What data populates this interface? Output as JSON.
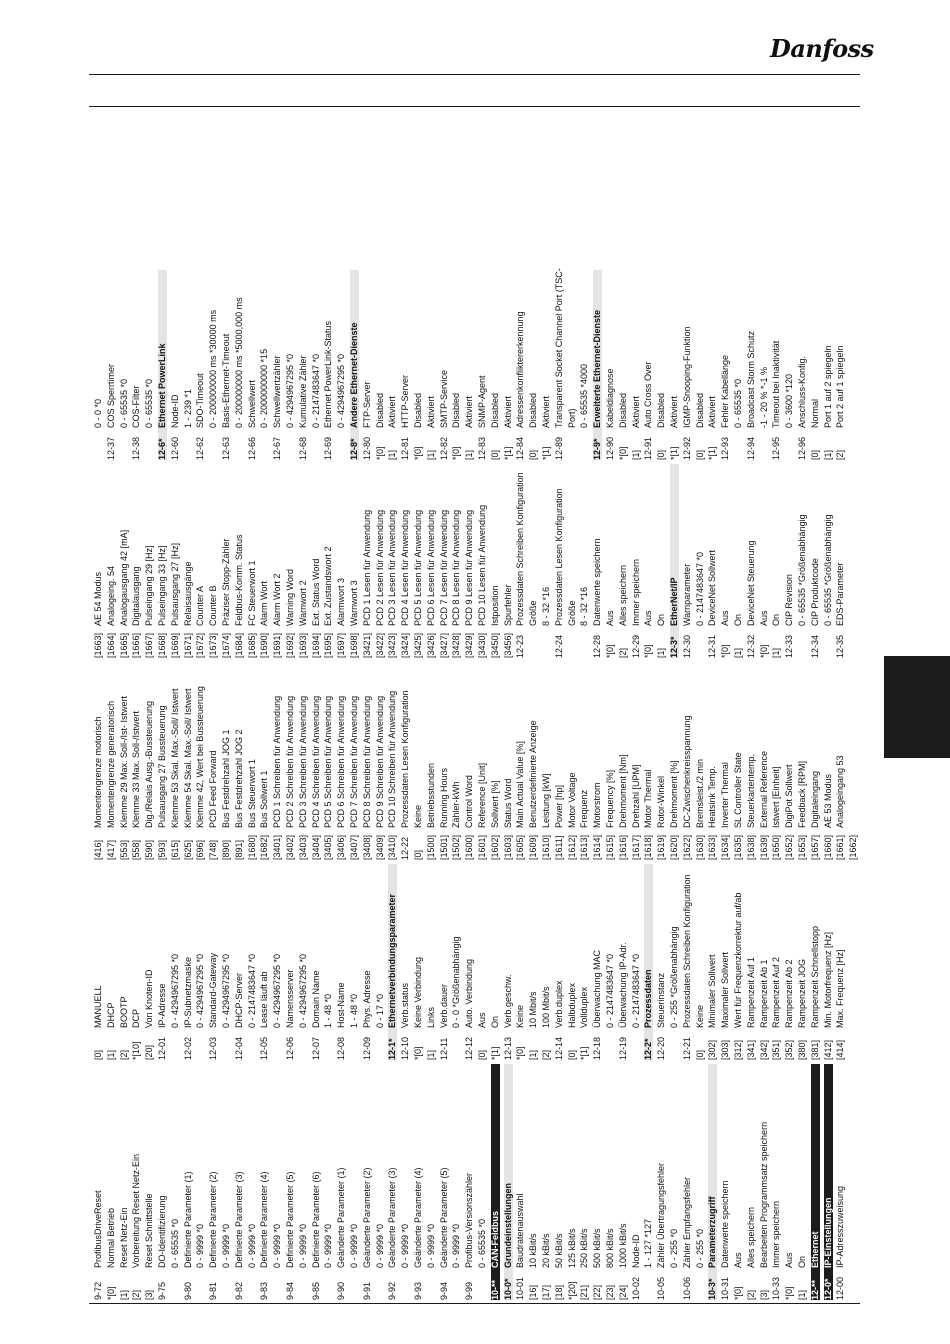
{
  "header": {
    "brand": "Danfoss"
  },
  "columns": [
    [
      [
        "9-72",
        "ProfibusDriveReset"
      ],
      [
        "*[0]",
        "Normal Betrieb"
      ],
      [
        "[1]",
        "Reset Netz-Ein"
      ],
      [
        "[2]",
        "Vorbereitung Reset Netz-Ein"
      ],
      [
        "[3]",
        "Reset Schnittstelle"
      ],
      [
        "9-75",
        "DO-Identifizierung"
      ],
      [
        "",
        "0 - 65535 *0"
      ],
      [
        "9-80",
        "Definierte Parameter (1)"
      ],
      [
        "",
        "0 - 9999 *0"
      ],
      [
        "9-81",
        "Definierte Parameter (2)"
      ],
      [
        "",
        "0 - 9999 *0"
      ],
      [
        "9-82",
        "Definierte Parameter (3)"
      ],
      [
        "",
        "0 - 9999 *0"
      ],
      [
        "9-83",
        "Definierte Parameter (4)"
      ],
      [
        "",
        "0 - 9999 *0"
      ],
      [
        "9-84",
        "Definierte Parameter (5)"
      ],
      [
        "",
        "0 - 9999 *0"
      ],
      [
        "9-85",
        "Definierte Parameter (6)"
      ],
      [
        "",
        "0 - 9999 *0"
      ],
      [
        "9-90",
        "Geänderte Parameter (1)"
      ],
      [
        "",
        "0 - 9999 *0"
      ],
      [
        "9-91",
        "Geänderte Parameter (2)"
      ],
      [
        "",
        "0 - 9999 *0"
      ],
      [
        "9-92",
        "Geänderte Parameter (3)"
      ],
      [
        "",
        "0 - 9999 *0"
      ],
      [
        "9-93",
        "Geänderte Parameter (4)"
      ],
      [
        "",
        "0 - 9999 *0"
      ],
      [
        "9-94",
        "Geänderte Parameter (5)"
      ],
      [
        "",
        "0 - 9999 *0"
      ],
      [
        "9-99",
        "Profibus-Versionszähler"
      ],
      [
        "",
        "0 - 65535 *0"
      ],
      [
        "10-**",
        "CAN-Feldbus",
        "dark"
      ],
      [
        "10-0*",
        "Grundeinstellungen",
        "sec"
      ],
      [
        "10-01",
        "Baudratenauswahl"
      ],
      [
        "[16]",
        "10 kBit/s"
      ],
      [
        "[17]",
        "20 kBit/s"
      ],
      [
        "[18]",
        "50 kBit/s"
      ],
      [
        "*[20]",
        "125 kBit/s"
      ],
      [
        "[21]",
        "250 kBit/s"
      ],
      [
        "[22]",
        "500 kBit/s"
      ],
      [
        "[23]",
        "800 kBit/s"
      ],
      [
        "[24]",
        "1000 kBit/s"
      ],
      [
        "10-02",
        "Node-ID"
      ],
      [
        "",
        "1 - 127 *127"
      ],
      [
        "10-05",
        "Zähler Übertragungsfehler"
      ],
      [
        "",
        "0 - 255 *0"
      ],
      [
        "10-06",
        "Zähler Empfangsfehler"
      ],
      [
        "",
        "0 - 255 *0"
      ],
      [
        "10-3*",
        "Parameterzugriff",
        "sec"
      ],
      [
        "10-31",
        "Datenwerte speichern"
      ],
      [
        "*[0]",
        "Aus"
      ],
      [
        "[2]",
        "Alles speichern"
      ],
      [
        "[3]",
        "Bearbeiten Programmsatz speichern"
      ],
      [
        "10-33",
        "Immer speichern"
      ],
      [
        "*[0]",
        "Aus"
      ],
      [
        "[1]",
        "On"
      ],
      [
        "12-**",
        "Ethernet",
        "dark"
      ],
      [
        "12-0*",
        "IP-Einstellungen",
        "dark"
      ],
      [
        "12-00",
        "IP-Adresszuweisung"
      ]
    ],
    [
      [
        "[0]",
        "MANUELL"
      ],
      [
        "[1]",
        "DHCP"
      ],
      [
        "[2]",
        "BOOTP"
      ],
      [
        "*[10]",
        "DCP"
      ],
      [
        "[20]",
        "Von Knoten-ID"
      ],
      [
        "12-01",
        "IP-Adresse"
      ],
      [
        "",
        "0 - 4294967295 *0"
      ],
      [
        "12-02",
        "IP-Subnetzmaske"
      ],
      [
        "",
        "0 - 4294967295 *0"
      ],
      [
        "12-03",
        "Standard-Gateway"
      ],
      [
        "",
        "0 - 4294967295 *0"
      ],
      [
        "12-04",
        "DHCP-Server"
      ],
      [
        "",
        "0 - 2147483647 *0"
      ],
      [
        "12-05",
        "Lease läuft ab"
      ],
      [
        "",
        "0 - 4294967295 *0"
      ],
      [
        "12-06",
        "Namensserver"
      ],
      [
        "",
        "0 - 4294967295 *0"
      ],
      [
        "12-07",
        "Domain Name"
      ],
      [
        "",
        "1 - 48 *0"
      ],
      [
        "12-08",
        "Host-Name"
      ],
      [
        "",
        "1 - 48 *0"
      ],
      [
        "12-09",
        "Phys. Adresse"
      ],
      [
        "",
        "0 - 17 *0"
      ],
      [
        "12-1*",
        "Ethernetverbindungsparameter",
        "sec"
      ],
      [
        "12-10",
        "Verb.status"
      ],
      [
        "*[0]",
        "Keine Verbindung"
      ],
      [
        "[1]",
        "Links"
      ],
      [
        "12-11",
        "Verb.dauer"
      ],
      [
        "",
        "0 - 0 *Größenabhängig"
      ],
      [
        "12-12",
        "Auto. Verbindung"
      ],
      [
        "[0]",
        "Aus"
      ],
      [
        "*[1]",
        "On"
      ],
      [
        "12-13",
        "Verb.geschw."
      ],
      [
        "*[0]",
        "Keine"
      ],
      [
        "[1]",
        "10 Mbit/s"
      ],
      [
        "[2]",
        "100 Mbit/s"
      ],
      [
        "12-14",
        "Verb.duplex"
      ],
      [
        "[0]",
        "Halbduplex"
      ],
      [
        "*[1]",
        "Vollduplex"
      ],
      [
        "12-18",
        "Überwachung MAC"
      ],
      [
        "",
        "0 - 2147483647 *0"
      ],
      [
        "12-19",
        "Überwachung IP-Adr."
      ],
      [
        "",
        "0 - 2147483647 *0"
      ],
      [
        "12-2*",
        "Prozessdaten",
        "sec"
      ],
      [
        "12-20",
        "Steuerinstanz"
      ],
      [
        "",
        "0 - 255 *Größenabhängig"
      ],
      [
        "12-21",
        "Prozessdaten Schreiben Konfiguration"
      ],
      [
        "[0]",
        "Keine"
      ],
      [
        "[302]",
        "Minimaler Sollwert"
      ],
      [
        "[303]",
        "Maximaler Sollwert"
      ],
      [
        "[312]",
        "Wert für Frequenzkorrektur auf/ab"
      ],
      [
        "[341]",
        "Rampenzeit Auf 1"
      ],
      [
        "[342]",
        "Rampenzeit Ab 1"
      ],
      [
        "[351]",
        "Rampenzeit Auf 2"
      ],
      [
        "[352]",
        "Rampenzeit Ab 2"
      ],
      [
        "[380]",
        "Rampenzeit JOG"
      ],
      [
        "[381]",
        "Rampenzeit Schnellstopp"
      ],
      [
        "[412]",
        "Min. Motorfrequenz [Hz]"
      ],
      [
        "[414]",
        "Max. Frequenz [Hz]"
      ]
    ],
    [
      [
        "[416]",
        "Momentengrenze motorisch"
      ],
      [
        "[417]",
        "Momentengrenze generatorisch"
      ],
      [
        "[553]",
        "Klemme 29 Max. Soll-/Ist- Istwert"
      ],
      [
        "[558]",
        "Klemme 33 Max. Soll-/Istwert"
      ],
      [
        "[590]",
        "Dig./Relais Ausg.-Bussteuerung"
      ],
      [
        "[593]",
        "Pulsausgang 27 Bussteuerung"
      ],
      [
        "[615]",
        "Klemme 53 Skal. Max.-Soll/ Istwert"
      ],
      [
        "[625]",
        "Klemme 54 Skal. Max.-Soll/ Istwert"
      ],
      [
        "[696]",
        "Klemme 42, Wert bei Bussteuerung"
      ],
      [
        "[748]",
        "PCD Feed Forward"
      ],
      [
        "[890]",
        "Bus Festdrehzahl JOG 1"
      ],
      [
        "[891]",
        "Bus Festdrehzahl JOG 2"
      ],
      [
        "[1680]",
        "Bus Steuerwort 1"
      ],
      [
        "[1682]",
        "Bus Sollwert 1"
      ],
      [
        "[3401]",
        "PCD 1 Schreiben für Anwendung"
      ],
      [
        "[3402]",
        "PCD 2 Schreiben für Anwendung"
      ],
      [
        "[3403]",
        "PCD 3 Schreiben für Anwendung"
      ],
      [
        "[3404]",
        "PCD 4 Schreiben für Anwendung"
      ],
      [
        "[3405]",
        "PCD 5 Schreiben für Anwendung"
      ],
      [
        "[3406]",
        "PCD 6 Schreiben für Anwendung"
      ],
      [
        "[3407]",
        "PCD 7 Schreiben für Anwendung"
      ],
      [
        "[3408]",
        "PCD 8 Schreiben für Anwendung"
      ],
      [
        "[3409]",
        "PCD 9 Schreiben für Anwendung"
      ],
      [
        "[3410]",
        "PCD 10 Schreiben für Anwendung"
      ],
      [
        "12-22",
        "Prozessdaten Lesen Konfiguration"
      ],
      [
        "[0]",
        "Keine"
      ],
      [
        "[1500]",
        "Betriebsstunden"
      ],
      [
        "[1501]",
        "Running Hours"
      ],
      [
        "[1502]",
        "Zähler-kWh"
      ],
      [
        "[1600]",
        "Control Word"
      ],
      [
        "[1601]",
        "Reference [Unit]"
      ],
      [
        "[1602]",
        "Sollwert [%]"
      ],
      [
        "[1603]",
        "Status Word"
      ],
      [
        "[1605]",
        "Main Actual Value [%]"
      ],
      [
        "[1609]",
        "Benutzerdefinierte Anzeige"
      ],
      [
        "[1610]",
        "Leistung [kW]"
      ],
      [
        "[1611]",
        "Power [hp]"
      ],
      [
        "[1612]",
        "Motor Voltage"
      ],
      [
        "[1613]",
        "Frequenz"
      ],
      [
        "[1614]",
        "Motorstrom"
      ],
      [
        "[1615]",
        "Frequency [%]"
      ],
      [
        "[1616]",
        "Drehmoment [Nm]"
      ],
      [
        "[1617]",
        "Drehzahl [UPM]"
      ],
      [
        "[1618]",
        "Motor Thermal"
      ],
      [
        "[1619]",
        "Rotor-Winkel"
      ],
      [
        "[1620]",
        "Drehmoment [%]"
      ],
      [
        "[1622]",
        "DC-Zwischenkreisspannung"
      ],
      [
        "[1630]",
        "Bremsleist./2 min"
      ],
      [
        "[1633]",
        "Heatsink Temp."
      ],
      [
        "[1634]",
        "Inverter Thermal"
      ],
      [
        "[1635]",
        "SL Controller State"
      ],
      [
        "[1638]",
        "Steuerkartentemp."
      ],
      [
        "[1639]",
        "External Reference"
      ],
      [
        "[1650]",
        "Istwert [Einheit]"
      ],
      [
        "[1652]",
        "DigiPot Sollwert"
      ],
      [
        "[1653]",
        "Feedback [RPM]"
      ],
      [
        "[1657]",
        "Digitaleingang"
      ],
      [
        "[1660]",
        "AE 53 Modus"
      ],
      [
        "[1661]",
        "Analogeingang 53"
      ],
      [
        "[1662]",
        ""
      ]
    ],
    [
      [
        "[1663]",
        "AE 54 Modus"
      ],
      [
        "[1664]",
        "Analogeing. 54"
      ],
      [
        "[1665]",
        "Analogausgang 42 [mA]"
      ],
      [
        "[1666]",
        "Digitalausgang"
      ],
      [
        "[1667]",
        "Pulseingang 29 [Hz]"
      ],
      [
        "[1668]",
        "Pulseingang 33 [Hz]"
      ],
      [
        "[1669]",
        "Pulsausgang 27 [Hz]"
      ],
      [
        "[1671]",
        "Relaisausgänge"
      ],
      [
        "[1672]",
        "Counter A"
      ],
      [
        "[1673]",
        "Counter B"
      ],
      [
        "[1674]",
        "Präziser Stopp-Zähler"
      ],
      [
        "[1684]",
        "Feldbus-Komm. Status"
      ],
      [
        "[1685]",
        "FC Steuerwort 1"
      ],
      [
        "[1690]",
        "Alarm Wort"
      ],
      [
        "[1691]",
        "Alarm Wort 2"
      ],
      [
        "[1692]",
        "Warning Word"
      ],
      [
        "[1693]",
        "Warnwort 2"
      ],
      [
        "[1694]",
        "Ext. Status Word"
      ],
      [
        "[1695]",
        "Ext. Zustandswort 2"
      ],
      [
        "[1697]",
        "Alarmwort 3"
      ],
      [
        "[1698]",
        "Warnwort 3"
      ],
      [
        "[3421]",
        "PCD 1 Lesen für Anwendung"
      ],
      [
        "[3422]",
        "PCD 2 Lesen für Anwendung"
      ],
      [
        "[3423]",
        "PCD 3 Lesen für Anwendung"
      ],
      [
        "[3424]",
        "PCD 4 Lesen für Anwendung"
      ],
      [
        "[3425]",
        "PCD 5 Lesen für Anwendung"
      ],
      [
        "[3426]",
        "PCD 6 Lesen für Anwendung"
      ],
      [
        "[3427]",
        "PCD 7 Lesen für Anwendung"
      ],
      [
        "[3428]",
        "PCD 8 Lesen für Anwendung"
      ],
      [
        "[3429]",
        "PCD 9 Lesen für Anwendung"
      ],
      [
        "[3430]",
        "PCD 10 Lesen für Anwendung"
      ],
      [
        "[3450]",
        "Istposition"
      ],
      [
        "[3456]",
        "Spurfehler"
      ],
      [
        "12-23",
        "Prozessdaten Schreiben Konfiguration"
      ],
      [
        "",
        "Größe"
      ],
      [
        "",
        "8 - 32 *16"
      ],
      [
        "12-24",
        "Prozessdaten Lesen Konfiguration"
      ],
      [
        "",
        "Größe"
      ],
      [
        "",
        "8 - 32 *16"
      ],
      [
        "12-28",
        "Datenwerte speichern"
      ],
      [
        "*[0]",
        "Aus"
      ],
      [
        "[2]",
        "Alles speichern"
      ],
      [
        "12-29",
        "Immer speichern"
      ],
      [
        "*[0]",
        "Aus"
      ],
      [
        "[1]",
        "On"
      ],
      [
        "12-3*",
        "EtherNet/IP",
        "sec"
      ],
      [
        "12-30",
        "Warnparameter"
      ],
      [
        "",
        "0 - 2147483647 *0"
      ],
      [
        "12-31",
        "DeviceNet Sollwert"
      ],
      [
        "*[0]",
        "Aus"
      ],
      [
        "[1]",
        "On"
      ],
      [
        "12-32",
        "DeviceNet Steuerung"
      ],
      [
        "*[0]",
        "Aus"
      ],
      [
        "[1]",
        "On"
      ],
      [
        "12-33",
        "CIP Revision"
      ],
      [
        "",
        "0 - 65535 *Größenabhängig"
      ],
      [
        "12-34",
        "CIP Produktcode"
      ],
      [
        "",
        "0 - 65535 *Größenabhängig"
      ],
      [
        "12-35",
        "EDS-Parameter"
      ]
    ],
    [
      [
        "",
        "0 - 0 *0"
      ],
      [
        "12-37",
        "COS Sperrtimer"
      ],
      [
        "",
        "0 - 65535 *0"
      ],
      [
        "12-38",
        "COS-Filter"
      ],
      [
        "",
        "0 - 65535 *0"
      ],
      [
        "12-6*",
        "Ethernet PowerLink",
        "sec"
      ],
      [
        "12-60",
        "Node-ID"
      ],
      [
        "",
        "1 - 239 *1"
      ],
      [
        "12-62",
        "SDO-Timeout"
      ],
      [
        "",
        "0 - 200000000 ms *30000 ms"
      ],
      [
        "12-63",
        "Basis-Ethernet-Timeout"
      ],
      [
        "",
        "0 - 200000000 ms *5000,000 ms"
      ],
      [
        "12-66",
        "Schwellwert"
      ],
      [
        "",
        "0 - 2000000000 *15"
      ],
      [
        "12-67",
        "Schwellwertzähler"
      ],
      [
        "",
        "0 - 4294967295 *0"
      ],
      [
        "12-68",
        "Kumulative Zähler"
      ],
      [
        "",
        "0 - 2147483647 *0"
      ],
      [
        "12-69",
        "Ethernet PowerLink-Status"
      ],
      [
        "",
        "0 - 4294967295 *0"
      ],
      [
        "12-8*",
        "Andere Ethernet-Dienste",
        "sec"
      ],
      [
        "12-80",
        "FTP-Server"
      ],
      [
        "*[0]",
        "Disabled"
      ],
      [
        "[1]",
        "Aktiviert"
      ],
      [
        "12-81",
        "HTTP-Server"
      ],
      [
        "*[0]",
        "Disabled"
      ],
      [
        "[1]",
        "Aktiviert"
      ],
      [
        "12-82",
        "SMTP-Service"
      ],
      [
        "*[0]",
        "Disabled"
      ],
      [
        "[1]",
        "Aktiviert"
      ],
      [
        "12-83",
        "SNMP-Agent"
      ],
      [
        "[0]",
        "Disabled"
      ],
      [
        "*[1]",
        "Aktiviert"
      ],
      [
        "12-84",
        "Adressenkonfliktererkennung"
      ],
      [
        "[0]",
        "Disabled"
      ],
      [
        "*[1]",
        "Aktiviert"
      ],
      [
        "12-89",
        "Transparent Socket Channel Port (TSC-"
      ],
      [
        "",
        "Port)"
      ],
      [
        "",
        "0 - 65535 *4000"
      ],
      [
        "12-9*",
        "Erweiterte Ethernet-Dienste",
        "sec"
      ],
      [
        "12-90",
        "Kabeldiagnose"
      ],
      [
        "*[0]",
        "Disabled"
      ],
      [
        "[1]",
        "Aktiviert"
      ],
      [
        "12-91",
        "Auto Cross Over"
      ],
      [
        "[0]",
        "Disabled"
      ],
      [
        "*[1]",
        "Aktiviert"
      ],
      [
        "12-92",
        "IGMP-Snooping-Funktion"
      ],
      [
        "[0]",
        "Disabled"
      ],
      [
        "*[1]",
        "Aktiviert"
      ],
      [
        "12-93",
        "Fehler Kabellänge"
      ],
      [
        "",
        "0 - 65535 *0"
      ],
      [
        "12-94",
        "Broadcast Storm Schutz"
      ],
      [
        "",
        "-1 - 20 % *-1 %"
      ],
      [
        "12-95",
        "Timeout bei Inaktivität"
      ],
      [
        "",
        "0 - 3600 *120"
      ],
      [
        "12-96",
        "Anschluss-Konfig."
      ],
      [
        "[0]",
        "Normal"
      ],
      [
        "[1]",
        "Port 1 auf 2 spiegeln"
      ],
      [
        "[2]",
        "Port 2 auf 1 spiegeln"
      ]
    ]
  ]
}
